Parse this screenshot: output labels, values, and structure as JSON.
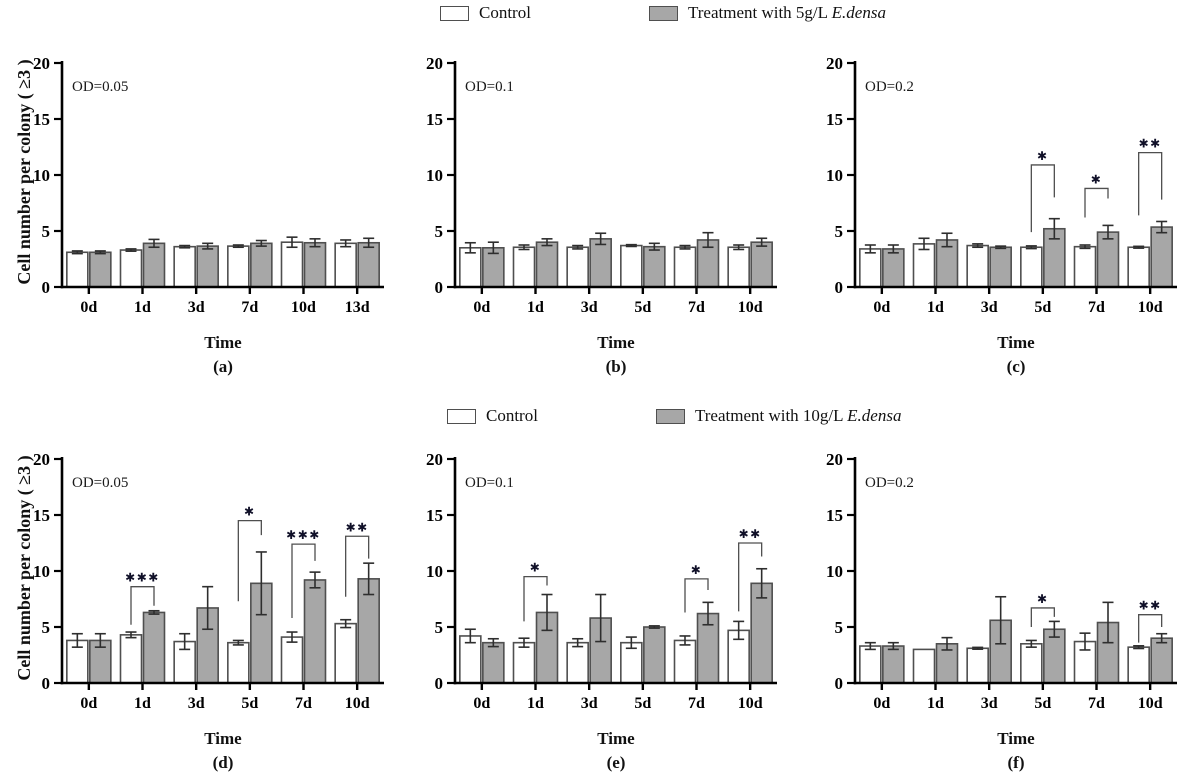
{
  "legends": [
    {
      "control_label": "Control",
      "treatment_label_prefix": "Treatment with 5g/L ",
      "treatment_label_italic": "E.densa"
    },
    {
      "control_label": "Control",
      "treatment_label_prefix": "Treatment with 10g/L ",
      "treatment_label_italic": "E.densa"
    }
  ],
  "colors": {
    "control_fill": "#ffffff",
    "treatment_fill": "#a7a7a7",
    "bar_border": "#4f4f4f",
    "axis": "#000000",
    "error_bar": "#2e2e2e",
    "bracket": "#4f4f4f",
    "star": "#101028"
  },
  "chart_data": [
    {
      "type": "bar",
      "panel_label": "(a)",
      "annotation": "OD=0.05",
      "xlabel": "Time",
      "ylabel": "Cell number per colony ( ≥3 )",
      "ylim": [
        0,
        20
      ],
      "yticks": [
        0,
        5,
        10,
        15,
        20
      ],
      "categories": [
        "0d",
        "1d",
        "3d",
        "7d",
        "10d",
        "13d"
      ],
      "series": [
        {
          "name": "Control",
          "values": [
            3.1,
            3.3,
            3.6,
            3.65,
            4.0,
            3.9
          ],
          "errors": [
            0.12,
            0.1,
            0.1,
            0.1,
            0.45,
            0.3
          ]
        },
        {
          "name": "Treatment",
          "values": [
            3.1,
            3.9,
            3.65,
            3.9,
            3.95,
            3.95
          ],
          "errors": [
            0.12,
            0.35,
            0.25,
            0.25,
            0.35,
            0.4
          ]
        }
      ],
      "significance": []
    },
    {
      "type": "bar",
      "panel_label": "(b)",
      "annotation": "OD=0.1",
      "xlabel": "Time",
      "ylabel": "",
      "ylim": [
        0,
        20
      ],
      "yticks": [
        0,
        5,
        10,
        15,
        20
      ],
      "categories": [
        "0d",
        "1d",
        "3d",
        "5d",
        "7d",
        "10d"
      ],
      "series": [
        {
          "name": "Control",
          "values": [
            3.5,
            3.55,
            3.55,
            3.7,
            3.55,
            3.55
          ],
          "errors": [
            0.45,
            0.2,
            0.15,
            0.08,
            0.15,
            0.2
          ]
        },
        {
          "name": "Treatment",
          "values": [
            3.5,
            4.0,
            4.3,
            3.6,
            4.2,
            4.0
          ],
          "errors": [
            0.5,
            0.3,
            0.5,
            0.3,
            0.65,
            0.35
          ]
        }
      ],
      "significance": []
    },
    {
      "type": "bar",
      "panel_label": "(c)",
      "annotation": "OD=0.2",
      "xlabel": "Time",
      "ylabel": "",
      "ylim": [
        0,
        20
      ],
      "yticks": [
        0,
        5,
        10,
        15,
        20
      ],
      "categories": [
        "0d",
        "1d",
        "3d",
        "5d",
        "7d",
        "10d"
      ],
      "series": [
        {
          "name": "Control",
          "values": [
            3.4,
            3.85,
            3.7,
            3.55,
            3.6,
            3.55
          ],
          "errors": [
            0.35,
            0.5,
            0.15,
            0.12,
            0.15,
            0.08
          ]
        },
        {
          "name": "Treatment",
          "values": [
            3.4,
            4.2,
            3.55,
            5.2,
            4.9,
            5.35
          ],
          "errors": [
            0.35,
            0.6,
            0.1,
            0.9,
            0.6,
            0.5
          ]
        }
      ],
      "significance": [
        {
          "category": "5d",
          "stars": "*",
          "top": 10.9,
          "left_end": 4.9,
          "right_end": 8.0
        },
        {
          "category": "7d",
          "stars": "*",
          "top": 8.8,
          "left_end": 6.2,
          "right_end": 7.9
        },
        {
          "category": "10d",
          "stars": "**",
          "top": 12.0,
          "left_end": 6.4,
          "right_end": 7.8
        }
      ]
    },
    {
      "type": "bar",
      "panel_label": "(d)",
      "annotation": "OD=0.05",
      "xlabel": "Time",
      "ylabel": "Cell number per colony ( ≥3 )",
      "ylim": [
        0,
        20
      ],
      "yticks": [
        0,
        5,
        10,
        15,
        20
      ],
      "categories": [
        "0d",
        "1d",
        "3d",
        "5d",
        "7d",
        "10d"
      ],
      "series": [
        {
          "name": "Control",
          "values": [
            3.8,
            4.3,
            3.7,
            3.6,
            4.1,
            5.3
          ],
          "errors": [
            0.6,
            0.25,
            0.7,
            0.2,
            0.45,
            0.35
          ]
        },
        {
          "name": "Treatment",
          "values": [
            3.8,
            6.3,
            6.7,
            8.9,
            9.2,
            9.3
          ],
          "errors": [
            0.6,
            0.15,
            1.9,
            2.8,
            0.7,
            1.4
          ]
        }
      ],
      "significance": [
        {
          "category": "1d",
          "stars": "***",
          "top": 8.6,
          "left_end": 5.2,
          "right_end": 6.9
        },
        {
          "category": "5d",
          "stars": "*",
          "top": 14.5,
          "left_end": 7.3,
          "right_end": 13.2
        },
        {
          "category": "7d",
          "stars": "***",
          "top": 12.4,
          "left_end": 5.8,
          "right_end": 10.9
        },
        {
          "category": "10d",
          "stars": "**",
          "top": 13.1,
          "left_end": 7.7,
          "right_end": 11.1
        }
      ]
    },
    {
      "type": "bar",
      "panel_label": "(e)",
      "annotation": "OD=0.1",
      "xlabel": "Time",
      "ylabel": "",
      "ylim": [
        0,
        20
      ],
      "yticks": [
        0,
        5,
        10,
        15,
        20
      ],
      "categories": [
        "0d",
        "1d",
        "3d",
        "5d",
        "7d",
        "10d"
      ],
      "series": [
        {
          "name": "Control",
          "values": [
            4.2,
            3.6,
            3.6,
            3.6,
            3.8,
            4.7
          ],
          "errors": [
            0.6,
            0.4,
            0.35,
            0.5,
            0.4,
            0.8
          ]
        },
        {
          "name": "Treatment",
          "values": [
            3.6,
            6.3,
            5.8,
            5.0,
            6.2,
            8.9
          ],
          "errors": [
            0.35,
            1.6,
            2.1,
            0.1,
            1.0,
            1.3
          ]
        }
      ],
      "significance": [
        {
          "category": "1d",
          "stars": "*",
          "top": 9.5,
          "left_end": 5.5,
          "right_end": 8.7
        },
        {
          "category": "7d",
          "stars": "*",
          "top": 9.3,
          "left_end": 6.3,
          "right_end": 8.3
        },
        {
          "category": "10d",
          "stars": "**",
          "top": 12.5,
          "left_end": 6.4,
          "right_end": 11.3
        }
      ]
    },
    {
      "type": "bar",
      "panel_label": "(f)",
      "annotation": "OD=0.2",
      "xlabel": "Time",
      "ylabel": "",
      "ylim": [
        0,
        20
      ],
      "yticks": [
        0,
        5,
        10,
        15,
        20
      ],
      "categories": [
        "0d",
        "1d",
        "3d",
        "5d",
        "7d",
        "10d"
      ],
      "series": [
        {
          "name": "Control",
          "values": [
            3.3,
            3.0,
            3.1,
            3.5,
            3.7,
            3.2
          ],
          "errors": [
            0.3,
            0,
            0.08,
            0.3,
            0.75,
            0.12
          ]
        },
        {
          "name": "Treatment",
          "values": [
            3.3,
            3.5,
            5.6,
            4.8,
            5.4,
            4.0
          ],
          "errors": [
            0.3,
            0.55,
            2.1,
            0.7,
            1.8,
            0.4
          ]
        }
      ],
      "significance": [
        {
          "category": "5d",
          "stars": "*",
          "top": 6.7,
          "left_end": 5.0,
          "right_end": 5.9
        },
        {
          "category": "10d",
          "stars": "**",
          "top": 6.1,
          "left_end": 3.6,
          "right_end": 5.0
        }
      ]
    }
  ]
}
